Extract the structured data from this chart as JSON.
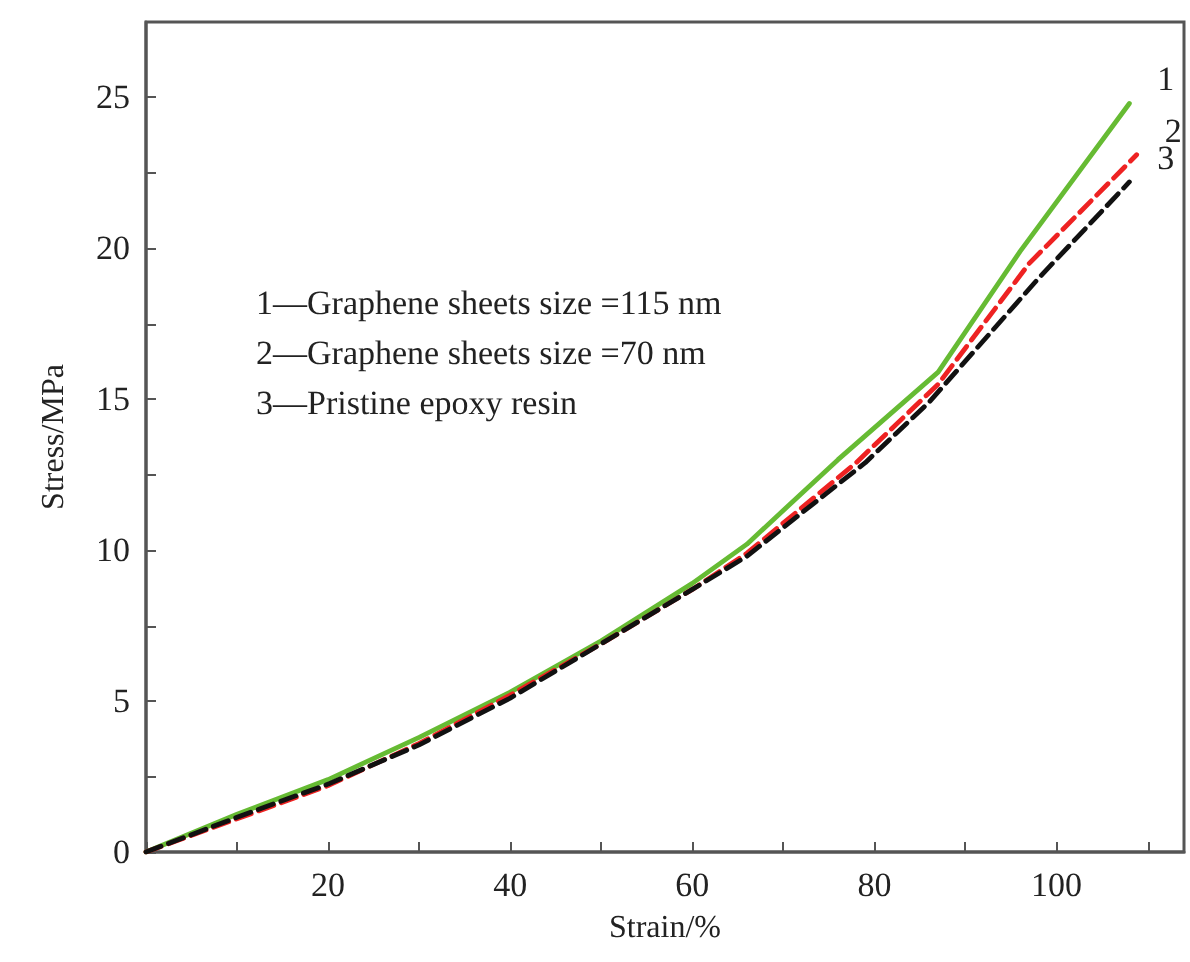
{
  "chart_data": {
    "type": "line",
    "xlabel": "Strain/%",
    "ylabel": "Stress/MPa",
    "annotations": [
      "1—Graphene sheets size =115 nm",
      "2—Graphene sheets size =70 nm",
      "3—Pristine epoxy resin"
    ],
    "series": [
      {
        "name": "1",
        "color": "#66bb33",
        "line_style": "solid",
        "x": [
          0,
          10,
          20,
          30,
          40,
          50,
          60,
          66,
          76,
          87,
          96,
          108
        ],
        "values": [
          0,
          1.25,
          2.4,
          3.8,
          5.3,
          7.0,
          8.9,
          10.2,
          13,
          15.9,
          19.9,
          24.8
        ]
      },
      {
        "name": "2",
        "color": "#ee2222",
        "line_style": "dashed",
        "x": [
          0,
          10,
          20,
          30,
          40,
          50,
          60,
          66,
          78,
          87,
          97,
          108.8
        ],
        "values": [
          0,
          1.1,
          2.2,
          3.6,
          5.2,
          6.9,
          8.7,
          9.9,
          12.9,
          15.5,
          19.5,
          23.1
        ]
      },
      {
        "name": "3",
        "color": "#111111",
        "line_style": "dashed",
        "x": [
          0,
          10,
          20,
          30,
          40,
          50,
          60,
          66,
          79,
          86,
          98,
          108
        ],
        "values": [
          0,
          1.15,
          2.25,
          3.55,
          5.1,
          6.9,
          8.7,
          9.8,
          12.9,
          14.9,
          19.0,
          22.2
        ]
      }
    ],
    "xlim": [
      0,
      114
    ],
    "xticks": [
      {
        "value": 0,
        "label": null
      },
      {
        "value": 10,
        "label": null
      },
      20,
      {
        "value": 30,
        "label": null
      },
      40,
      {
        "value": 50,
        "label": null
      },
      60,
      {
        "value": 70,
        "label": null
      },
      80,
      {
        "value": 90,
        "label": null
      },
      100,
      {
        "value": 110,
        "label": null
      }
    ],
    "ylim": [
      0,
      27.5
    ],
    "yticks": [
      0,
      {
        "value": 2.5,
        "label": null
      },
      5,
      {
        "value": 7.5,
        "label": null
      },
      10,
      {
        "value": 12.5,
        "label": null
      },
      15,
      {
        "value": 17.5,
        "label": null
      },
      20,
      {
        "value": 22.5,
        "label": null
      },
      25
    ],
    "grid": false,
    "legend": false,
    "marker": "none"
  }
}
